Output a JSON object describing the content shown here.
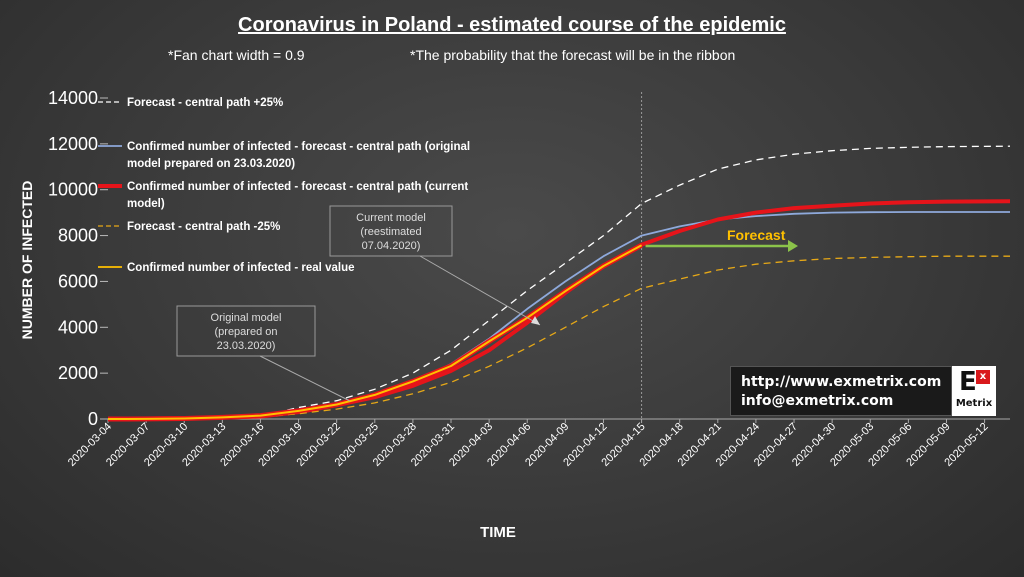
{
  "chart_data": {
    "type": "line",
    "title": "Coronavirus in Poland - estimated course of the epidemic",
    "subtitle_left": "*Fan chart width = 0.9",
    "subtitle_right": "*The probability that the forecast  will be in the ribbon",
    "xlabel": "TIME",
    "ylabel": "NUMBER OF INFECTED",
    "ylim": [
      0,
      14000
    ],
    "yticks": [
      "0",
      "2000",
      "4000",
      "6000",
      "8000",
      "10000",
      "12000",
      "14000"
    ],
    "xticks": [
      "2020-03-04",
      "2020-03-07",
      "2020-03-10",
      "2020-03-13",
      "2020-03-16",
      "2020-03-19",
      "2020-03-22",
      "2020-03-25",
      "2020-03-28",
      "2020-03-31",
      "2020-04-03",
      "2020-04-06",
      "2020-04-09",
      "2020-04-12",
      "2020-04-15",
      "2020-04-18",
      "2020-04-21",
      "2020-04-24",
      "2020-04-27",
      "2020-04-30",
      "2020-05-03",
      "2020-05-06",
      "2020-05-09",
      "2020-05-12"
    ],
    "x_start": "2020-03-04",
    "x_end": "2020-05-14",
    "forecast_start": "2020-04-15",
    "grid": false,
    "legend_position": "top-left",
    "series": [
      {
        "name": "Forecast - central path +25%",
        "color": "#ffffff",
        "style": "dashed",
        "points": [
          [
            "2020-03-04",
            0
          ],
          [
            "2020-03-13",
            60
          ],
          [
            "2020-03-16",
            120
          ],
          [
            "2020-03-19",
            500
          ],
          [
            "2020-03-22",
            800
          ],
          [
            "2020-03-25",
            1300
          ],
          [
            "2020-03-28",
            2000
          ],
          [
            "2020-03-31",
            3000
          ],
          [
            "2020-04-03",
            4300
          ],
          [
            "2020-04-06",
            5600
          ],
          [
            "2020-04-09",
            6800
          ],
          [
            "2020-04-12",
            8000
          ],
          [
            "2020-04-15",
            9400
          ],
          [
            "2020-04-18",
            10200
          ],
          [
            "2020-04-21",
            10900
          ],
          [
            "2020-04-24",
            11300
          ],
          [
            "2020-04-27",
            11550
          ],
          [
            "2020-04-30",
            11700
          ],
          [
            "2020-05-03",
            11800
          ],
          [
            "2020-05-06",
            11850
          ],
          [
            "2020-05-09",
            11880
          ],
          [
            "2020-05-14",
            11900
          ]
        ]
      },
      {
        "name": "Confirmed number of infected - forecast - central path (original model prepared on 23.03.2020)",
        "color": "#8ea9db",
        "style": "solid",
        "points": [
          [
            "2020-03-04",
            0
          ],
          [
            "2020-03-13",
            60
          ],
          [
            "2020-03-16",
            120
          ],
          [
            "2020-03-19",
            350
          ],
          [
            "2020-03-22",
            650
          ],
          [
            "2020-03-25",
            1050
          ],
          [
            "2020-03-28",
            1600
          ],
          [
            "2020-03-31",
            2400
          ],
          [
            "2020-04-03",
            3500
          ],
          [
            "2020-04-06",
            4800
          ],
          [
            "2020-04-09",
            6000
          ],
          [
            "2020-04-12",
            7100
          ],
          [
            "2020-04-15",
            8000
          ],
          [
            "2020-04-18",
            8400
          ],
          [
            "2020-04-21",
            8700
          ],
          [
            "2020-04-24",
            8850
          ],
          [
            "2020-04-27",
            8950
          ],
          [
            "2020-04-30",
            9000
          ],
          [
            "2020-05-03",
            9020
          ],
          [
            "2020-05-06",
            9030
          ],
          [
            "2020-05-09",
            9030
          ],
          [
            "2020-05-14",
            9030
          ]
        ]
      },
      {
        "name": "Confirmed number of infected - forecast - central path (current model)",
        "color": "#e6141a",
        "style": "solid-thick",
        "points": [
          [
            "2020-03-04",
            0
          ],
          [
            "2020-03-13",
            60
          ],
          [
            "2020-03-16",
            110
          ],
          [
            "2020-03-19",
            300
          ],
          [
            "2020-03-22",
            600
          ],
          [
            "2020-03-25",
            950
          ],
          [
            "2020-03-28",
            1450
          ],
          [
            "2020-03-31",
            2100
          ],
          [
            "2020-04-03",
            3000
          ],
          [
            "2020-04-06",
            4200
          ],
          [
            "2020-04-09",
            5500
          ],
          [
            "2020-04-12",
            6700
          ],
          [
            "2020-04-15",
            7600
          ],
          [
            "2020-04-18",
            8200
          ],
          [
            "2020-04-21",
            8700
          ],
          [
            "2020-04-24",
            9000
          ],
          [
            "2020-04-27",
            9200
          ],
          [
            "2020-04-30",
            9300
          ],
          [
            "2020-05-03",
            9400
          ],
          [
            "2020-05-06",
            9450
          ],
          [
            "2020-05-09",
            9480
          ],
          [
            "2020-05-14",
            9500
          ]
        ]
      },
      {
        "name": "Forecast - central path  -25%",
        "color": "#e6a817",
        "style": "dashed",
        "points": [
          [
            "2020-03-04",
            0
          ],
          [
            "2020-03-13",
            50
          ],
          [
            "2020-03-16",
            90
          ],
          [
            "2020-03-19",
            230
          ],
          [
            "2020-03-22",
            430
          ],
          [
            "2020-03-25",
            700
          ],
          [
            "2020-03-28",
            1100
          ],
          [
            "2020-03-31",
            1600
          ],
          [
            "2020-04-03",
            2300
          ],
          [
            "2020-04-06",
            3100
          ],
          [
            "2020-04-09",
            4000
          ],
          [
            "2020-04-12",
            4900
          ],
          [
            "2020-04-15",
            5700
          ],
          [
            "2020-04-18",
            6100
          ],
          [
            "2020-04-21",
            6500
          ],
          [
            "2020-04-24",
            6750
          ],
          [
            "2020-04-27",
            6900
          ],
          [
            "2020-04-30",
            7000
          ],
          [
            "2020-05-03",
            7050
          ],
          [
            "2020-05-06",
            7080
          ],
          [
            "2020-05-09",
            7100
          ],
          [
            "2020-05-14",
            7100
          ]
        ]
      },
      {
        "name": "Confirmed number of infected - real value",
        "color": "#ffc000",
        "style": "solid",
        "points": [
          [
            "2020-03-04",
            1
          ],
          [
            "2020-03-07",
            6
          ],
          [
            "2020-03-10",
            22
          ],
          [
            "2020-03-13",
            68
          ],
          [
            "2020-03-16",
            150
          ],
          [
            "2020-03-19",
            355
          ],
          [
            "2020-03-22",
            634
          ],
          [
            "2020-03-25",
            1051
          ],
          [
            "2020-03-28",
            1638
          ],
          [
            "2020-03-31",
            2311
          ],
          [
            "2020-04-03",
            3383
          ],
          [
            "2020-04-06",
            4413
          ],
          [
            "2020-04-09",
            5575
          ],
          [
            "2020-04-12",
            6674
          ],
          [
            "2020-04-15",
            7582
          ]
        ]
      }
    ],
    "annotations": {
      "original_model": "Original model\n(prepared on\n23.03.2020)",
      "current_model": "Current model\n(reestimated\n07.04.2020)",
      "forecast_label": "Forecast"
    }
  },
  "branding": {
    "url": "http://www.exmetrix.com",
    "email": "info@exmetrix.com",
    "logo_letter": "E",
    "logo_sup": "x",
    "logo_word": "Metrix"
  }
}
